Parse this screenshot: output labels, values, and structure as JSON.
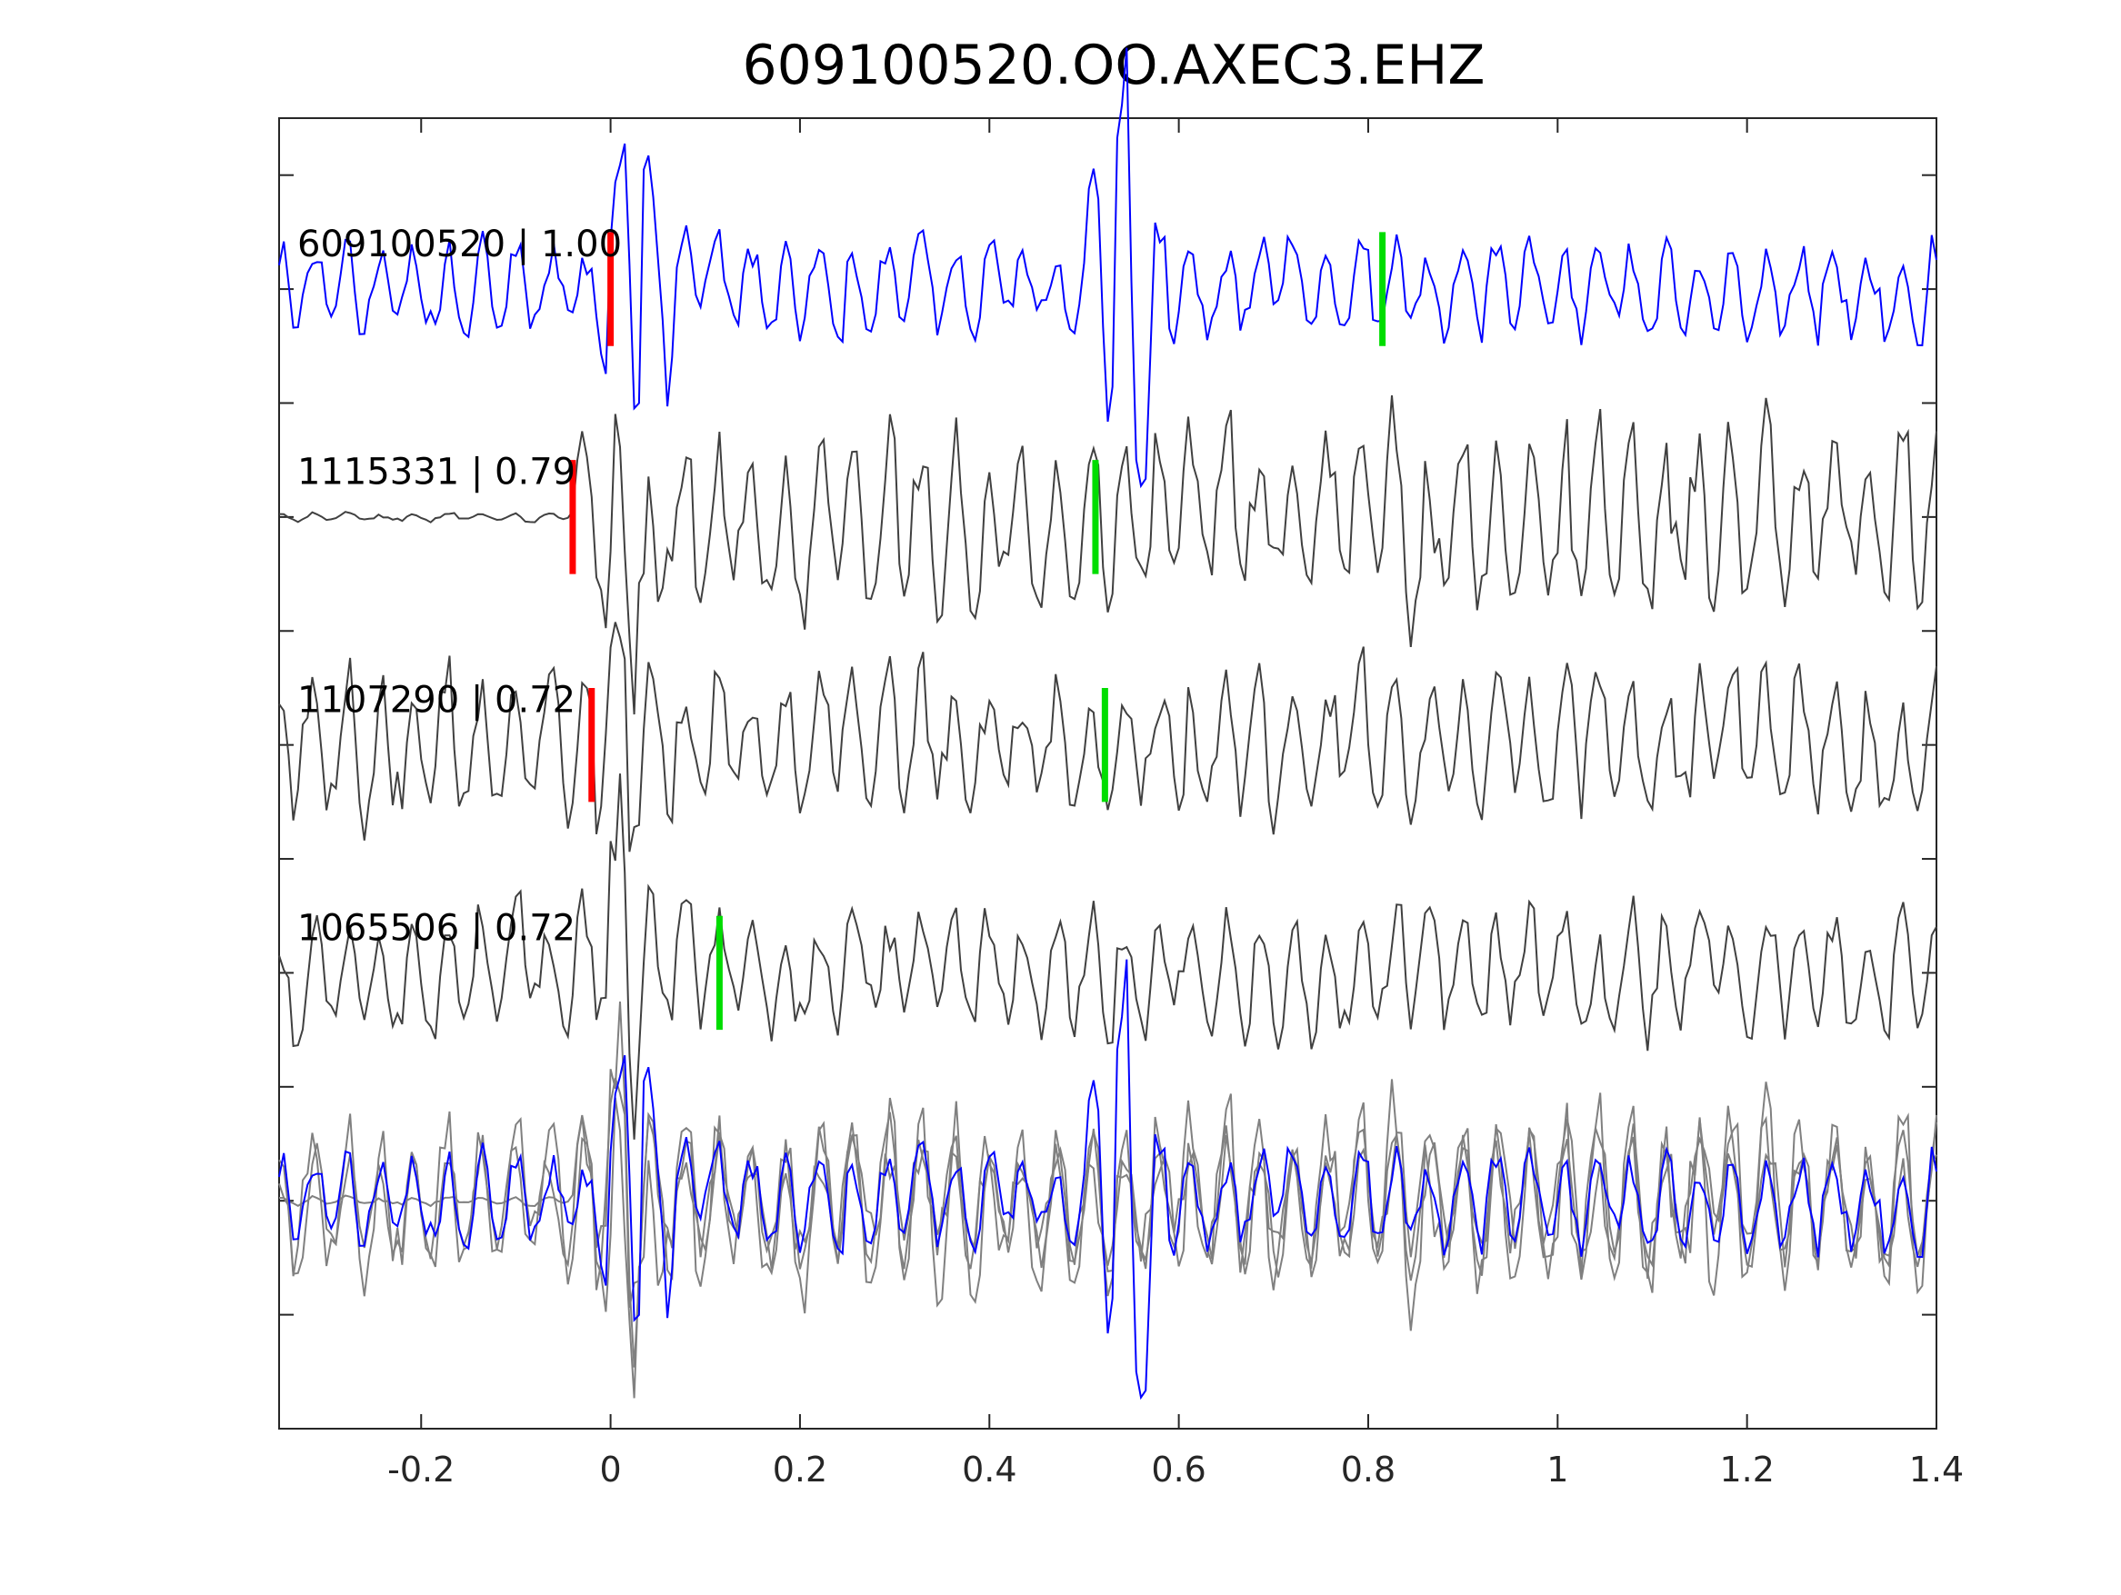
{
  "chart_data": {
    "type": "line",
    "title": "609100520.OO.AXEC3.EHZ",
    "xlabel": "",
    "ylabel": "",
    "xlim": [
      -0.35,
      1.4
    ],
    "xticks": [
      -0.2,
      0,
      0.2,
      0.4,
      0.6,
      0.8,
      1,
      1.2,
      1.4
    ],
    "xtick_labels": [
      "-0.2",
      "0",
      "0.2",
      "0.4",
      "0.6",
      "0.8",
      "1",
      "1.2",
      "1.4"
    ],
    "ylim": [
      0,
      5.75
    ],
    "ytick_count": 11,
    "grid": false,
    "colors": {
      "template": "#0000ff",
      "match": "#404040",
      "overlay_match": "#808080",
      "p_pick": "#ff0000",
      "s_pick": "#00dd00",
      "axes": "#262626"
    },
    "series": [
      {
        "label": "609100520 | 1.00",
        "offset": 5,
        "role": "template",
        "seed": 11,
        "amp": 0.27,
        "onset": -0.35,
        "bursts": [
          {
            "t": 0.025,
            "a": 0.95
          },
          {
            "t": 0.54,
            "a": 0.95
          }
        ],
        "picks": [
          {
            "phase": "P",
            "time": 0.0
          },
          {
            "phase": "S",
            "time": 0.815
          }
        ]
      },
      {
        "label": "1115331 | 0.79",
        "offset": 4,
        "role": "match",
        "seed": 23,
        "amp": 0.5,
        "onset": -0.04,
        "bursts": [
          {
            "t": 0.02,
            "a": 0.55
          }
        ],
        "picks": [
          {
            "phase": "P",
            "time": -0.04
          },
          {
            "phase": "S",
            "time": 0.512
          }
        ]
      },
      {
        "label": "1107290 | 0.72",
        "offset": 3,
        "role": "match",
        "seed": 37,
        "amp": 0.42,
        "onset": -0.35,
        "bursts": [
          {
            "t": 0.015,
            "a": 0.6
          }
        ],
        "picks": [
          {
            "phase": "P",
            "time": -0.02
          },
          {
            "phase": "S",
            "time": 0.522
          }
        ]
      },
      {
        "label": "1065506 | 0.72",
        "offset": 2,
        "role": "match",
        "seed": 53,
        "amp": 0.36,
        "onset": -0.35,
        "bursts": [
          {
            "t": 0.01,
            "a": 0.55
          }
        ],
        "picks": [
          {
            "phase": "S",
            "time": 0.115
          }
        ]
      }
    ],
    "overlay": {
      "offset": 1,
      "description_source": "all traces overlaid"
    }
  }
}
